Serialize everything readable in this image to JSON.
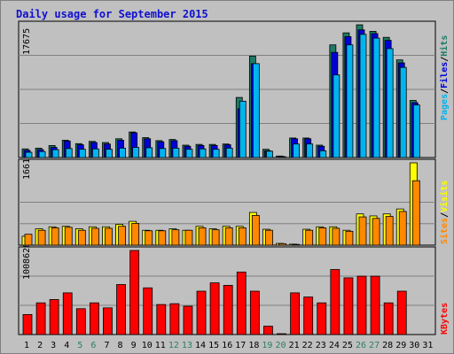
{
  "title": "Daily usage for September 2015",
  "colors": {
    "background": "#c0c0c0",
    "panel": "#c0c0c0",
    "border": "#000000",
    "title": "#1010d0",
    "hits": "#1e7a64",
    "files": "#0000d8",
    "pages": "#00b4f0",
    "visits": "#ffff00",
    "sites": "#ff8800",
    "kbytes": "#ff0000",
    "weekday_label": "#000000",
    "weekend_label": "#2a8060"
  },
  "legend": {
    "top": {
      "pages": "Pages",
      "files": "Files",
      "hits": "Hits",
      "sep": "/"
    },
    "middle": {
      "sites": "Sites",
      "visits": "Visits",
      "sep": "/"
    },
    "bottom": {
      "kbytes": "KBytes"
    }
  },
  "chart_data": [
    {
      "type": "bar",
      "name": "hits-files-pages",
      "categories": [
        "1",
        "2",
        "3",
        "4",
        "5",
        "6",
        "7",
        "8",
        "9",
        "10",
        "11",
        "12",
        "13",
        "14",
        "15",
        "16",
        "17",
        "18",
        "19",
        "20",
        "21",
        "22",
        "23",
        "24",
        "25",
        "26",
        "27",
        "28",
        "29",
        "30",
        "31"
      ],
      "ymax_label": "17675",
      "ylim": [
        0,
        17675
      ],
      "series": [
        {
          "name": "Hits",
          "values": [
            1150,
            1250,
            1600,
            2300,
            1850,
            2150,
            2000,
            2500,
            3400,
            2650,
            2250,
            2400,
            1650,
            1750,
            1750,
            1800,
            8000,
            13500,
            1100,
            200,
            2600,
            2600,
            1650,
            15000,
            16600,
            17675,
            16800,
            16000,
            13000,
            7600,
            0
          ]
        },
        {
          "name": "Files",
          "values": [
            950,
            1050,
            1350,
            2200,
            1700,
            2000,
            1800,
            2300,
            3300,
            2500,
            2100,
            2250,
            1500,
            1600,
            1600,
            1700,
            6500,
            12500,
            900,
            150,
            2500,
            2500,
            1500,
            14000,
            16100,
            17000,
            16500,
            15600,
            12600,
            7300,
            0
          ]
        },
        {
          "name": "Pages",
          "values": [
            700,
            800,
            1050,
            1200,
            1100,
            1150,
            1100,
            1250,
            1350,
            1300,
            1200,
            1250,
            1100,
            1150,
            1100,
            1250,
            7500,
            12500,
            850,
            100,
            1800,
            1800,
            900,
            11000,
            15000,
            16400,
            15900,
            14500,
            12000,
            7000,
            0
          ]
        }
      ]
    },
    {
      "type": "bar",
      "name": "visits-sites",
      "categories": [
        "1",
        "2",
        "3",
        "4",
        "5",
        "6",
        "7",
        "8",
        "9",
        "10",
        "11",
        "12",
        "13",
        "14",
        "15",
        "16",
        "17",
        "18",
        "19",
        "20",
        "21",
        "22",
        "23",
        "24",
        "25",
        "26",
        "27",
        "28",
        "29",
        "30",
        "31"
      ],
      "ymax_label": "1661",
      "ylim": [
        0,
        1661
      ],
      "series": [
        {
          "name": "Visits",
          "values": [
            180,
            330,
            370,
            380,
            330,
            370,
            370,
            420,
            480,
            300,
            300,
            330,
            300,
            380,
            330,
            380,
            380,
            660,
            320,
            35,
            20,
            320,
            370,
            370,
            300,
            630,
            590,
            630,
            730,
            1661,
            0
          ]
        },
        {
          "name": "Sites",
          "values": [
            220,
            300,
            350,
            360,
            300,
            340,
            340,
            380,
            440,
            290,
            290,
            310,
            300,
            350,
            310,
            350,
            350,
            600,
            300,
            30,
            15,
            300,
            350,
            340,
            280,
            570,
            540,
            580,
            680,
            1300,
            0
          ]
        }
      ]
    },
    {
      "type": "bar",
      "name": "kbytes",
      "categories": [
        "1",
        "2",
        "3",
        "4",
        "5",
        "6",
        "7",
        "8",
        "9",
        "10",
        "11",
        "12",
        "13",
        "14",
        "15",
        "16",
        "17",
        "18",
        "19",
        "20",
        "21",
        "22",
        "23",
        "24",
        "25",
        "26",
        "27",
        "28",
        "29",
        "30",
        "31"
      ],
      "ymax_label": "1008628",
      "ylim": [
        0,
        1008628
      ],
      "series": [
        {
          "name": "KBytes",
          "values": [
            240000,
            380000,
            420000,
            500000,
            310000,
            380000,
            320000,
            600000,
            1008628,
            560000,
            360000,
            370000,
            340000,
            520000,
            620000,
            590000,
            750000,
            520000,
            100000,
            10000,
            500000,
            450000,
            380000,
            780000,
            680000,
            700000,
            700000,
            380000,
            520000,
            0,
            0
          ]
        }
      ]
    }
  ]
}
